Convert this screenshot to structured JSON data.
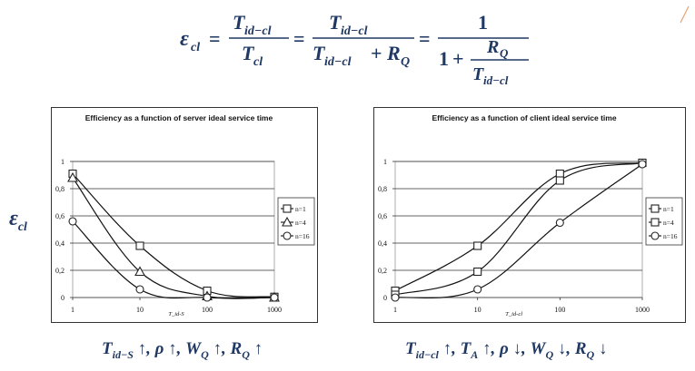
{
  "formula": {
    "lhs": "ε",
    "lhs_sub": "cl",
    "t": "T",
    "t_sub_id_cl": "id−cl",
    "t_sub_cl": "cl",
    "plus": "+",
    "r": "R",
    "r_sub": "Q",
    "one": "1",
    "equals": "="
  },
  "y_axis_label": {
    "symbol": "ε",
    "sub": "cl"
  },
  "captions": {
    "left": {
      "t": "T",
      "t_sub": "id−S",
      "rest": " ↑, ρ ↑, W",
      "w_sub": "Q",
      "rest2": " ↑, R",
      "r_sub": "Q",
      "rest3": " ↑"
    },
    "right": {
      "t": "T",
      "t_sub": "id−cl",
      "rest": " ↑, T",
      "ta_sub": "A",
      "rest2": " ↑, ρ ↓, W",
      "w_sub": "Q",
      "rest3": " ↓, R",
      "r_sub": "Q",
      "rest4": " ↓"
    }
  },
  "chart_data": [
    {
      "type": "line",
      "title": "Efficiency as a function of server ideal service time",
      "xlabel": "T_id-S",
      "ylabel": "",
      "xscale": "log",
      "x": [
        1,
        10,
        100,
        1000
      ],
      "xticks": [
        "1",
        "10",
        "100",
        "1000"
      ],
      "yticks": [
        "0",
        "0,2",
        "0,4",
        "0,6",
        "0,8",
        "1"
      ],
      "ylim": [
        0,
        1
      ],
      "legend": "right",
      "series": [
        {
          "name": "n=1",
          "marker": "square",
          "values": [
            0.91,
            0.38,
            0.05,
            0.005
          ]
        },
        {
          "name": "n=4",
          "marker": "triangle",
          "values": [
            0.88,
            0.19,
            0.01,
            0.0
          ]
        },
        {
          "name": "n=16",
          "marker": "circle",
          "values": [
            0.56,
            0.06,
            0.0,
            0.0
          ]
        }
      ]
    },
    {
      "type": "line",
      "title": "Efficiency as a function of client ideal service time",
      "xlabel": "T_id-cl",
      "ylabel": "",
      "xscale": "log",
      "x": [
        1,
        10,
        100,
        1000
      ],
      "xticks": [
        "1",
        "10",
        "100",
        "1000"
      ],
      "yticks": [
        "0",
        "0,2",
        "0,4",
        "0,6",
        "0,8",
        "1"
      ],
      "ylim": [
        0,
        1
      ],
      "legend": "right",
      "series": [
        {
          "name": "n=1",
          "marker": "square",
          "values": [
            0.05,
            0.38,
            0.91,
            0.99
          ]
        },
        {
          "name": "n=4",
          "marker": "square",
          "values": [
            0.02,
            0.19,
            0.86,
            0.99
          ]
        },
        {
          "name": "n=16",
          "marker": "circle",
          "values": [
            0.0,
            0.06,
            0.55,
            0.98
          ]
        }
      ]
    }
  ]
}
